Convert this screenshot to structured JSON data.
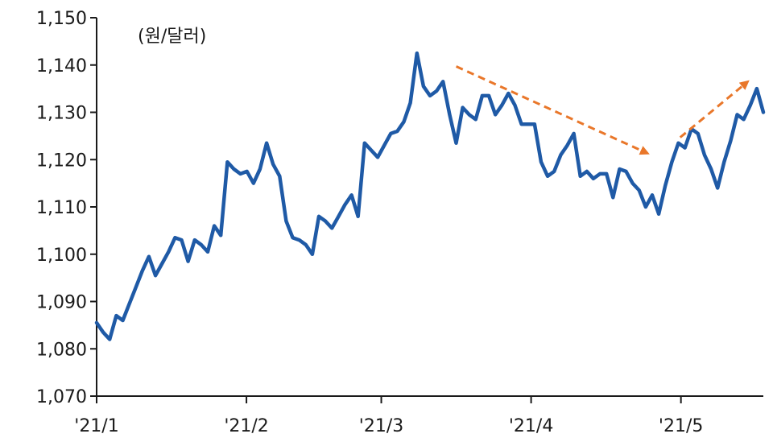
{
  "chart_data": {
    "type": "line",
    "title": "",
    "unit_label": "(원/달러)",
    "xlabel": "",
    "ylabel": "",
    "ylim": [
      1070,
      1150
    ],
    "y_ticks": [
      "1,070",
      "1,080",
      "1,090",
      "1,100",
      "1,110",
      "1,120",
      "1,130",
      "1,140",
      "1,150"
    ],
    "y_tick_values": [
      1070,
      1080,
      1090,
      1100,
      1110,
      1120,
      1130,
      1140,
      1150
    ],
    "x_ticks": [
      "'21/1",
      "'21/2",
      "'21/3",
      "'21/4",
      "'21/5"
    ],
    "x_tick_positions": [
      0,
      20,
      38,
      58,
      78
    ],
    "x_range": [
      0,
      89
    ],
    "grid": false,
    "legend": "none",
    "series": [
      {
        "color": "#1f5aa6",
        "values": [
          1085.5,
          1083.5,
          1082,
          1087,
          1086,
          1089.5,
          1093,
          1096.5,
          1099.5,
          1095.5,
          1098,
          1100.5,
          1103.5,
          1103,
          1098.5,
          1103,
          1102,
          1100.5,
          1106,
          1104,
          1119.5,
          1118,
          1117,
          1117.5,
          1115,
          1118,
          1123.5,
          1119,
          1116.5,
          1107,
          1103.5,
          1103,
          1102,
          1100,
          1108,
          1107,
          1105.5,
          1108,
          1110.5,
          1112.5,
          1108,
          1123.5,
          1122,
          1120.5,
          1123,
          1125.5,
          1126,
          1128,
          1132,
          1142.5,
          1135.5,
          1133.5,
          1134.5,
          1136.5,
          1129.5,
          1123.5,
          1131,
          1129.5,
          1128.5,
          1133.5,
          1133.5,
          1129.5,
          1131.5,
          1134,
          1131.5,
          1127.5,
          1127.5,
          1127.5,
          1119.5,
          1116.5,
          1117.5,
          1121,
          1123,
          1125.5,
          1116.5,
          1117.5,
          1116,
          1117,
          1117,
          1112,
          1118,
          1117.5,
          1115,
          1113.5,
          1110,
          1112.5,
          1108.5,
          1114.5,
          1119.5,
          1123.5,
          1122.5,
          1126.5,
          1125.5,
          1121,
          1118,
          1114,
          1119.5,
          1124,
          1129.5,
          1128.5,
          1131.5,
          1135,
          1130
        ]
      }
    ],
    "annotations": [
      {
        "type": "arrow",
        "style": "dashed",
        "color": "#e9772a",
        "from": [
          48.0,
          1139.7
        ],
        "to": [
          73.3,
          1121.5
        ]
      },
      {
        "type": "arrow",
        "style": "dashed",
        "color": "#e9772a",
        "from": [
          77.9,
          1124.7
        ],
        "to": [
          86.7,
          1136.2
        ]
      }
    ]
  }
}
